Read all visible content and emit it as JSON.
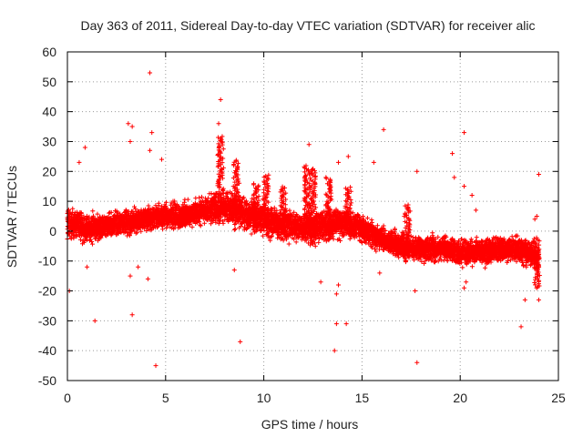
{
  "chart_data": {
    "type": "scatter",
    "title": "Day 363 of 2011, Sidereal Day-to-day VTEC variation (SDTVAR) for receiver alic",
    "xlabel": "GPS time / hours",
    "ylabel": "SDTVAR / TECUs",
    "xlim": [
      0,
      25
    ],
    "ylim": [
      -50,
      60
    ],
    "xticks": [
      0,
      5,
      10,
      15,
      20,
      25
    ],
    "yticks": [
      -50,
      -40,
      -30,
      -20,
      -10,
      0,
      10,
      20,
      30,
      40,
      50,
      60
    ],
    "xtick_labels": [
      "0",
      "5",
      "10",
      "15",
      "20",
      "25"
    ],
    "ytick_labels": [
      "-50",
      "-40",
      "-30",
      "-20",
      "-10",
      "0",
      "10",
      "20",
      "30",
      "40",
      "50",
      "60"
    ],
    "grid": true,
    "marker": "+",
    "color": "#ff0000",
    "series": [
      {
        "name": "SDTVAR",
        "band_profile": {
          "x": [
            0,
            1,
            2,
            3,
            4,
            5,
            6,
            7,
            8,
            9,
            10,
            11,
            12,
            13,
            14,
            15,
            16,
            17,
            18,
            19,
            20,
            21,
            22,
            23,
            24
          ],
          "center": [
            3,
            1,
            2,
            3,
            4,
            5,
            5,
            7,
            8,
            6,
            4,
            2,
            1,
            2,
            3,
            1,
            -3,
            -5,
            -6,
            -6,
            -7,
            -7,
            -6,
            -6,
            -9
          ],
          "spread": [
            6,
            6,
            5,
            5,
            5,
            5,
            5,
            5,
            6,
            6,
            6,
            6,
            6,
            6,
            6,
            5,
            5,
            5,
            5,
            5,
            5,
            5,
            5,
            5,
            6
          ]
        },
        "spikes": [
          {
            "x": 7.8,
            "from": 10,
            "to": 32
          },
          {
            "x": 8.6,
            "from": 8,
            "to": 24
          },
          {
            "x": 9.6,
            "from": 4,
            "to": 16
          },
          {
            "x": 10.1,
            "from": 2,
            "to": 19
          },
          {
            "x": 11.0,
            "from": 4,
            "to": 15
          },
          {
            "x": 12.2,
            "from": 3,
            "to": 22
          },
          {
            "x": 12.5,
            "from": -5,
            "to": 21
          },
          {
            "x": 13.3,
            "from": -3,
            "to": 18
          },
          {
            "x": 14.3,
            "from": 0,
            "to": 15
          },
          {
            "x": 17.3,
            "from": -8,
            "to": 9
          },
          {
            "x": 23.9,
            "from": -19,
            "to": -2
          }
        ],
        "outliers": [
          {
            "x": 4.2,
            "y": 53
          },
          {
            "x": 7.8,
            "y": 44
          },
          {
            "x": 7.7,
            "y": 36
          },
          {
            "x": 3.1,
            "y": 36
          },
          {
            "x": 3.3,
            "y": 35
          },
          {
            "x": 4.3,
            "y": 33
          },
          {
            "x": 3.2,
            "y": 30
          },
          {
            "x": 0.9,
            "y": 28
          },
          {
            "x": 4.2,
            "y": 27
          },
          {
            "x": 4.8,
            "y": 24
          },
          {
            "x": 0.6,
            "y": 23
          },
          {
            "x": 16.1,
            "y": 34
          },
          {
            "x": 20.2,
            "y": 33
          },
          {
            "x": 12.3,
            "y": 29
          },
          {
            "x": 14.3,
            "y": 25
          },
          {
            "x": 19.6,
            "y": 26
          },
          {
            "x": 13.8,
            "y": 23
          },
          {
            "x": 15.6,
            "y": 23
          },
          {
            "x": 17.8,
            "y": 20
          },
          {
            "x": 19.7,
            "y": 18
          },
          {
            "x": 24.0,
            "y": 19
          },
          {
            "x": 20.2,
            "y": 15
          },
          {
            "x": 20.6,
            "y": 12
          },
          {
            "x": 20.8,
            "y": 7
          },
          {
            "x": 0.1,
            "y": -20
          },
          {
            "x": 1.4,
            "y": -30
          },
          {
            "x": 3.3,
            "y": -28
          },
          {
            "x": 4.5,
            "y": -45
          },
          {
            "x": 8.8,
            "y": -37
          },
          {
            "x": 8.5,
            "y": -13
          },
          {
            "x": 3.6,
            "y": -12
          },
          {
            "x": 4.1,
            "y": -16
          },
          {
            "x": 3.2,
            "y": -15
          },
          {
            "x": 1.0,
            "y": -12
          },
          {
            "x": 12.9,
            "y": -17
          },
          {
            "x": 13.7,
            "y": -31
          },
          {
            "x": 14.2,
            "y": -31
          },
          {
            "x": 13.6,
            "y": -40
          },
          {
            "x": 13.7,
            "y": -21
          },
          {
            "x": 13.8,
            "y": -18
          },
          {
            "x": 17.8,
            "y": -44
          },
          {
            "x": 17.7,
            "y": -20
          },
          {
            "x": 23.1,
            "y": -32
          },
          {
            "x": 23.3,
            "y": -23
          },
          {
            "x": 24.0,
            "y": -23
          },
          {
            "x": 20.2,
            "y": -19
          },
          {
            "x": 20.3,
            "y": -17
          },
          {
            "x": 15.9,
            "y": -14
          },
          {
            "x": 23.8,
            "y": 4
          },
          {
            "x": 23.9,
            "y": 5
          }
        ]
      }
    ]
  }
}
